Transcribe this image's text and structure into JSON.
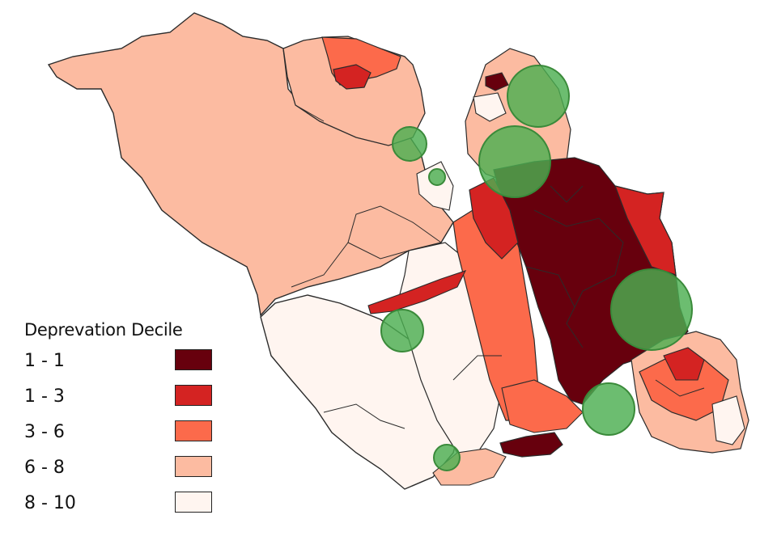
{
  "legend": {
    "title": "Deprevation Decile",
    "items": [
      {
        "label": "1 - 1",
        "color": "#67000d"
      },
      {
        "label": "1 - 3",
        "color": "#d42322"
      },
      {
        "label": "3 - 6",
        "color": "#fc6a4b"
      },
      {
        "label": "6 - 8",
        "color": "#fcbba1"
      },
      {
        "label": "8 - 10",
        "color": "#fff5f0"
      }
    ]
  },
  "colors": {
    "boundary": "#2b2b2b",
    "marker_fill": "#4caf50",
    "marker_stroke": "#3a8a3a"
  }
}
